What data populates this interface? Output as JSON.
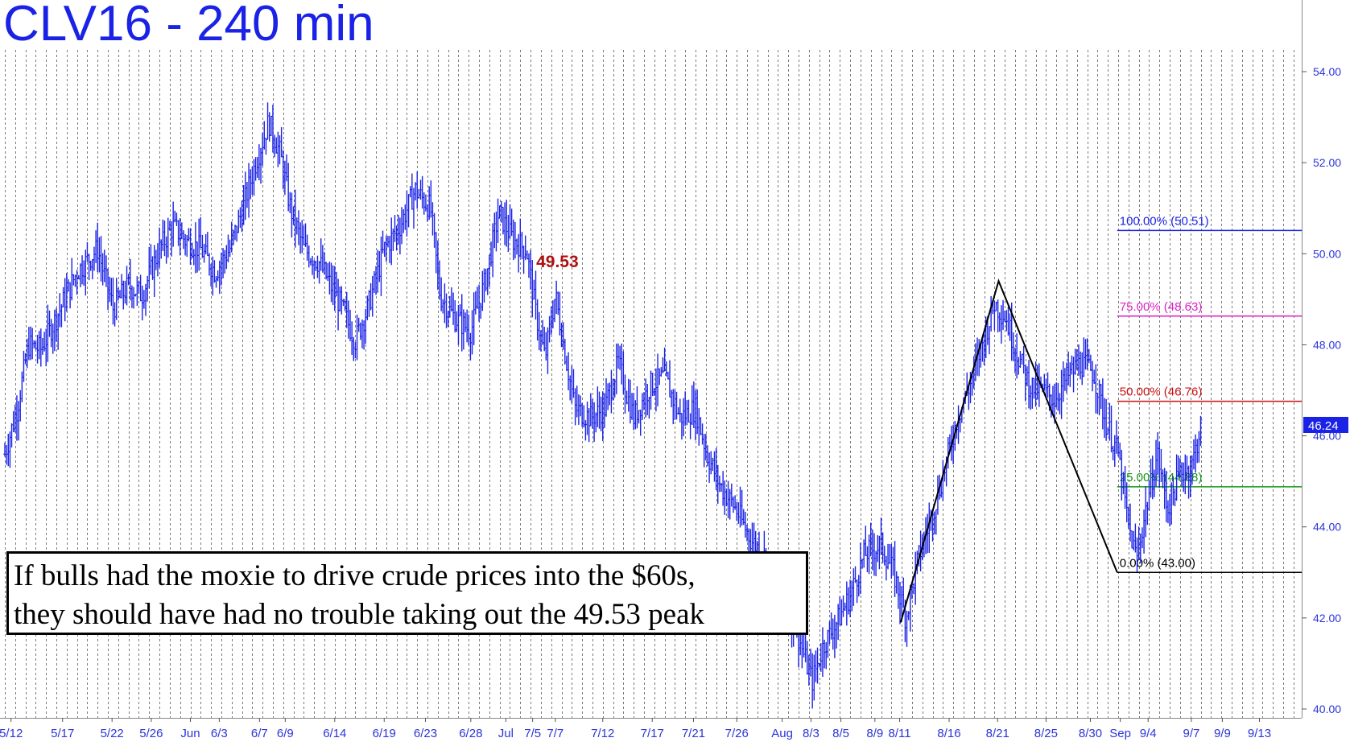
{
  "chart_data": {
    "type": "candlestick",
    "title": "CLV16 - 240 min",
    "annotation": [
      "If bulls had the moxie to drive crude prices into the $60s,",
      "they should have had no trouble taking out the 49.53 peak"
    ],
    "peak_label": "49.53",
    "last_price_label": "46.24",
    "ylim": [
      39.3,
      55.5
    ],
    "y_ticks": [
      "40.00",
      "42.00",
      "44.00",
      "46.00",
      "48.00",
      "50.00",
      "52.00",
      "54.00"
    ],
    "x_labels": [
      "5/12",
      "5/17",
      "5/22",
      "5/26",
      "Jun",
      "6/3",
      "6/7",
      "6/9",
      "6/14",
      "6/19",
      "6/23",
      "6/28",
      "Jul",
      "7/5",
      "7/7",
      "7/12",
      "7/17",
      "7/21",
      "7/26",
      "Aug",
      "8/3",
      "8/5",
      "8/9",
      "8/11",
      "8/16",
      "8/21",
      "8/25",
      "8/30",
      "Sep",
      "9/4",
      "9/7",
      "9/9",
      "9/13"
    ],
    "x_label_positions": [
      0.6,
      5.6,
      10.4,
      14.2,
      18,
      20.8,
      24.7,
      27.2,
      32,
      36.8,
      40.8,
      45.2,
      48.6,
      51.2,
      53.4,
      58,
      62.8,
      66.8,
      71,
      75.4,
      78.2,
      81.1,
      84.4,
      86.8,
      91.6,
      96.3,
      101,
      105.3,
      108.2,
      110.9,
      115.1,
      118.1,
      121.7
    ],
    "x_end": 125.8,
    "price_path": [
      [
        0,
        45.6
      ],
      [
        1.2,
        46.6
      ],
      [
        2.3,
        48.0
      ],
      [
        3.5,
        47.9
      ],
      [
        5,
        48.6
      ],
      [
        7,
        49.6
      ],
      [
        9,
        50.1
      ],
      [
        10.5,
        48.8
      ],
      [
        12,
        49.3
      ],
      [
        13.3,
        49.1
      ],
      [
        15,
        50.1
      ],
      [
        16.3,
        50.6
      ],
      [
        17.5,
        50.3
      ],
      [
        19,
        50.1
      ],
      [
        20.4,
        49.6
      ],
      [
        21.8,
        50.1
      ],
      [
        23.1,
        51.0
      ],
      [
        24.2,
        51.9
      ],
      [
        25.6,
        52.9
      ],
      [
        26.7,
        52.2
      ],
      [
        27.7,
        51.0
      ],
      [
        29,
        50.1
      ],
      [
        30.5,
        49.8
      ],
      [
        32.5,
        48.9
      ],
      [
        34,
        48.1
      ],
      [
        35.2,
        48.8
      ],
      [
        36.8,
        50.1
      ],
      [
        38.3,
        50.6
      ],
      [
        39.8,
        51.4
      ],
      [
        41.3,
        51.0
      ],
      [
        42.2,
        49.1
      ],
      [
        43.6,
        48.6
      ],
      [
        45.2,
        48.3
      ],
      [
        46.6,
        49.4
      ],
      [
        47.9,
        50.9
      ],
      [
        49.3,
        50.3
      ],
      [
        50.6,
        50.1
      ],
      [
        51.5,
        48.7
      ],
      [
        52.4,
        47.7
      ],
      [
        53.4,
        49.1
      ],
      [
        54.2,
        48.0
      ],
      [
        55.3,
        46.6
      ],
      [
        56.8,
        46.4
      ],
      [
        58.2,
        46.6
      ],
      [
        59.5,
        47.6
      ],
      [
        61,
        46.4
      ],
      [
        62.6,
        47.1
      ],
      [
        64,
        47.3
      ],
      [
        65.5,
        46.4
      ],
      [
        67,
        46.6
      ],
      [
        68.1,
        45.6
      ],
      [
        69.4,
        44.9
      ],
      [
        70.9,
        44.4
      ],
      [
        72.4,
        43.7
      ],
      [
        73.6,
        43.4
      ],
      [
        75,
        42.4
      ],
      [
        76.6,
        41.9
      ],
      [
        77.5,
        41.2
      ],
      [
        78.3,
        40.6
      ],
      [
        79.4,
        41.4
      ],
      [
        80.7,
        41.9
      ],
      [
        82,
        42.5
      ],
      [
        83.4,
        43.4
      ],
      [
        85,
        43.6
      ],
      [
        86.2,
        43.0
      ],
      [
        87.4,
        42.0
      ],
      [
        88.6,
        43.3
      ],
      [
        90,
        44.3
      ],
      [
        91.2,
        45.3
      ],
      [
        92.4,
        46.4
      ],
      [
        93.6,
        47.1
      ],
      [
        94.8,
        48.0
      ],
      [
        96,
        48.9
      ],
      [
        97.1,
        48.6
      ],
      [
        98.2,
        47.8
      ],
      [
        99.4,
        47.1
      ],
      [
        100.6,
        47.0
      ],
      [
        101.8,
        46.8
      ],
      [
        103.1,
        47.3
      ],
      [
        104.3,
        47.6
      ],
      [
        105.6,
        47.4
      ],
      [
        106.8,
        46.3
      ],
      [
        108,
        45.6
      ],
      [
        109,
        44.0
      ],
      [
        109.8,
        43.3
      ],
      [
        110.6,
        44.3
      ],
      [
        111.8,
        45.6
      ],
      [
        112.8,
        44.4
      ],
      [
        114,
        45.2
      ],
      [
        115.1,
        45.3
      ],
      [
        116,
        46.2
      ]
    ],
    "swing_lines": [
      [
        [
          86.9,
          41.9
        ],
        [
          96.4,
          49.4
        ],
        [
          107.9,
          43.0
        ]
      ]
    ],
    "fib_levels": [
      {
        "label": "100.00% (50.51)",
        "value": 50.51,
        "color": "#1a22e6"
      },
      {
        "label": "75.00% (48.63)",
        "value": 48.63,
        "color": "#e020c8"
      },
      {
        "label": "50.00% (46.76)",
        "value": 46.76,
        "color": "#cc1111"
      },
      {
        "label": "25.00% (44.88)",
        "value": 44.88,
        "color": "#119911"
      },
      {
        "label": "0.00% (43.00)",
        "value": 43.0,
        "color": "#000000"
      }
    ],
    "fib_start_x": 107.9,
    "fib_end_x": 120.6,
    "colors": {
      "bars": "#1a22e6",
      "title": "#1a22e6",
      "peak": "#b01010",
      "grid": "#7a7a7a",
      "axis_text": "#2b34d8",
      "last_price_bg": "#1a22e6"
    }
  }
}
